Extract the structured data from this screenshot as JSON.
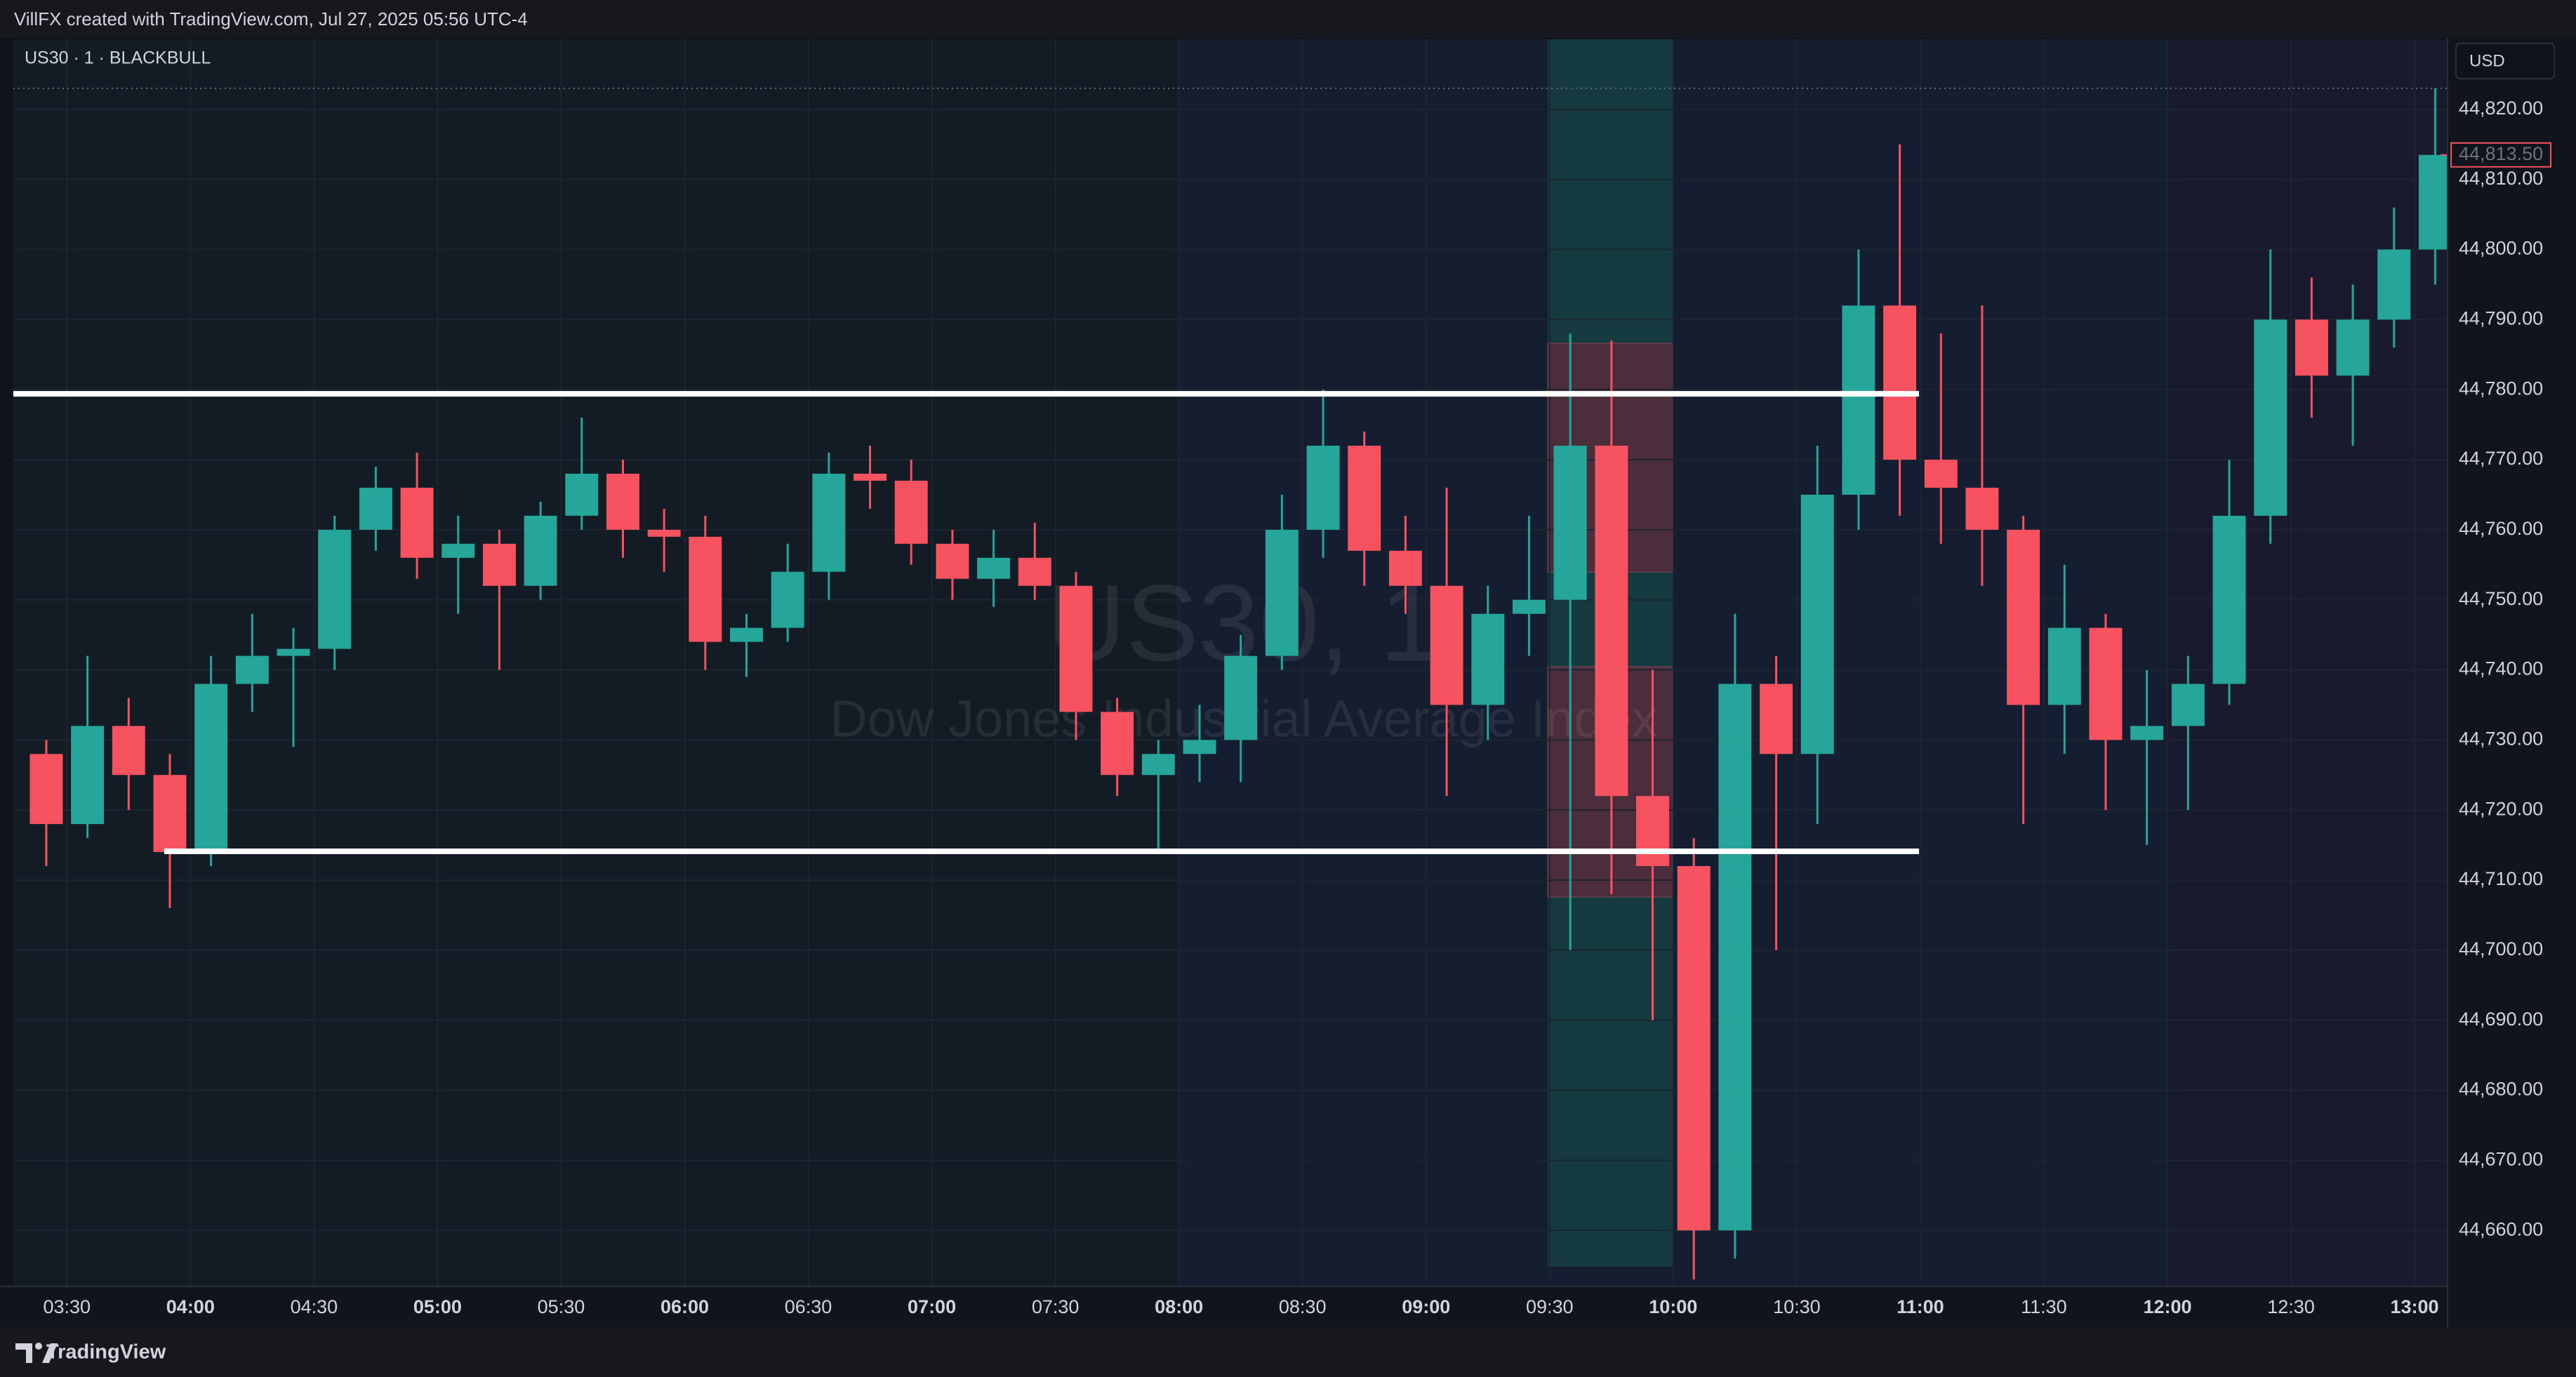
{
  "header": {
    "text": "VillFX created with TradingView.com, Jul 27, 2025 05:56 UTC-4"
  },
  "footer": {
    "brand": "TradingView"
  },
  "chart_data": {
    "type": "candlestick",
    "title": "US30 · 1 · BLACKBULL",
    "currency": "USD",
    "watermark": {
      "title": "US30, 1",
      "subtitle": "Dow Jones Industrial Average Index"
    },
    "x": [
      "03:20",
      "03:30",
      "03:40",
      "03:50",
      "04:00",
      "04:10",
      "04:20",
      "04:30",
      "04:40",
      "04:50",
      "05:00",
      "05:10",
      "05:20",
      "05:30",
      "05:40",
      "05:50",
      "06:00",
      "06:10",
      "06:20",
      "06:30",
      "06:40",
      "06:50",
      "07:00",
      "07:10",
      "07:20",
      "07:30",
      "07:40",
      "07:50",
      "08:00",
      "08:10",
      "08:20",
      "08:30",
      "08:40",
      "08:50",
      "09:00",
      "09:10",
      "09:20",
      "09:30",
      "09:40",
      "09:50",
      "10:00",
      "10:10",
      "10:20",
      "10:30",
      "10:40",
      "10:50",
      "11:00",
      "11:10",
      "11:20",
      "11:30",
      "11:40",
      "11:50",
      "12:00",
      "12:10",
      "12:20",
      "12:30",
      "12:40",
      "12:50",
      "13:00"
    ],
    "open": [
      44728,
      44718,
      44732,
      44725,
      44714,
      44738,
      44742,
      44743,
      44760,
      44766,
      44756,
      44758,
      44752,
      44762,
      44768,
      44760,
      44759,
      44744,
      44746,
      44754,
      44768,
      44767,
      44758,
      44753,
      44756,
      44752,
      44734,
      44725,
      44728,
      44730,
      44742,
      44760,
      44772,
      44757,
      44752,
      44735,
      44748,
      44750,
      44772,
      44722,
      44712,
      44660,
      44738,
      44728,
      44765,
      44792,
      44770,
      44766,
      44760,
      44735,
      44746,
      44730,
      44732,
      44738,
      44762,
      44790,
      44782,
      44790,
      44800
    ],
    "high": [
      44730,
      44742,
      44736,
      44728,
      44742,
      44748,
      44746,
      44762,
      44769,
      44771,
      44762,
      44760,
      44764,
      44776,
      44770,
      44763,
      44762,
      44748,
      44758,
      44771,
      44772,
      44770,
      44760,
      44760,
      44761,
      44754,
      44736,
      44730,
      44735,
      44745,
      44765,
      44780,
      44774,
      44762,
      44766,
      44752,
      44762,
      44788,
      44787,
      44740,
      44716,
      44748,
      44742,
      44772,
      44800,
      44815,
      44788,
      44792,
      44762,
      44755,
      44748,
      44740,
      44742,
      44770,
      44800,
      44796,
      44795,
      44806,
      44823
    ],
    "low": [
      44712,
      44716,
      44720,
      44706,
      44712,
      44734,
      44729,
      44740,
      44757,
      44753,
      44748,
      44740,
      44750,
      44760,
      44756,
      44754,
      44740,
      44739,
      44744,
      44750,
      44763,
      44755,
      44750,
      44749,
      44750,
      44730,
      44722,
      44714,
      44724,
      44724,
      44740,
      44756,
      44752,
      44748,
      44722,
      44730,
      44742,
      44700,
      44708,
      44690,
      44653,
      44656,
      44700,
      44718,
      44760,
      44762,
      44758,
      44752,
      44718,
      44728,
      44720,
      44715,
      44720,
      44735,
      44758,
      44776,
      44772,
      44786,
      44795
    ],
    "close": [
      44718,
      44732,
      44725,
      44714,
      44738,
      44742,
      44743,
      44760,
      44766,
      44756,
      44758,
      44752,
      44762,
      44768,
      44760,
      44759,
      44744,
      44746,
      44754,
      44768,
      44767,
      44758,
      44753,
      44756,
      44752,
      44734,
      44725,
      44728,
      44730,
      44742,
      44760,
      44772,
      44757,
      44752,
      44735,
      44748,
      44750,
      44772,
      44722,
      44712,
      44660,
      44738,
      44728,
      44765,
      44792,
      44770,
      44766,
      44760,
      44735,
      44746,
      44730,
      44732,
      44738,
      44762,
      44790,
      44782,
      44790,
      44800,
      44813.5
    ],
    "up_color": "#26a69a",
    "down_color": "#f7525f",
    "xlim": [
      "03:17",
      "13:08"
    ],
    "xticks": [
      "03:30",
      "04:00",
      "04:30",
      "05:00",
      "05:30",
      "06:00",
      "06:30",
      "07:00",
      "07:30",
      "08:00",
      "08:30",
      "09:00",
      "09:30",
      "10:00",
      "10:30",
      "11:00",
      "11:30",
      "12:00",
      "12:30",
      "13:00"
    ],
    "ylim": [
      44652,
      44830
    ],
    "yticks": [
      {
        "value": 44660,
        "label": "44,660.00"
      },
      {
        "value": 44670,
        "label": "44,670.00"
      },
      {
        "value": 44680,
        "label": "44,680.00"
      },
      {
        "value": 44690,
        "label": "44,690.00"
      },
      {
        "value": 44700,
        "label": "44,700.00"
      },
      {
        "value": 44710,
        "label": "44,710.00"
      },
      {
        "value": 44720,
        "label": "44,720.00"
      },
      {
        "value": 44730,
        "label": "44,730.00"
      },
      {
        "value": 44740,
        "label": "44,740.00"
      },
      {
        "value": 44750,
        "label": "44,750.00"
      },
      {
        "value": 44760,
        "label": "44,760.00"
      },
      {
        "value": 44770,
        "label": "44,770.00"
      },
      {
        "value": 44780,
        "label": "44,780.00"
      },
      {
        "value": 44790,
        "label": "44,790.00"
      },
      {
        "value": 44800,
        "label": "44,800.00"
      },
      {
        "value": 44810,
        "label": "44,810.00"
      },
      {
        "value": 44820,
        "label": "44,820.00"
      }
    ],
    "last_price": {
      "value": 44813.5,
      "label": "44,813.50"
    },
    "levels": [
      44779.4,
      44714.1
    ],
    "grid": true
  }
}
